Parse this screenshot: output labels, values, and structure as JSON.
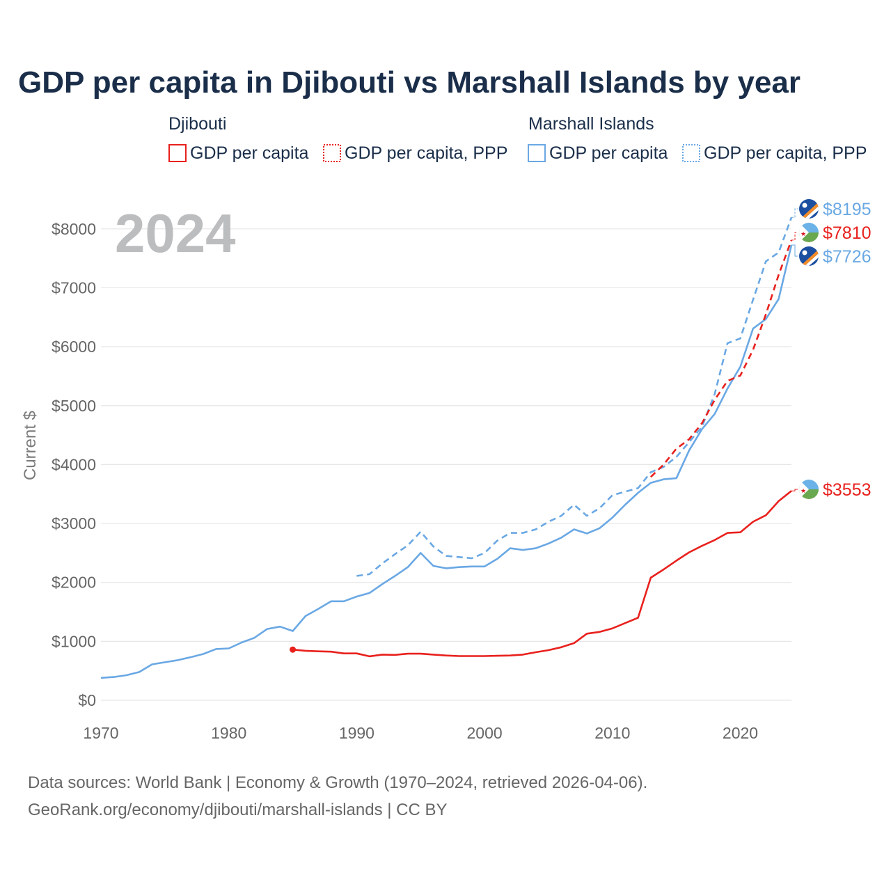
{
  "colors": {
    "djibouti": "#e8211d",
    "marshall": "#6aa8e4",
    "grid": "#e6e6e6",
    "title": "#1a2e4a",
    "tick": "#666666"
  },
  "chart_data": {
    "type": "line",
    "title": "GDP per capita in Djibouti vs Marshall Islands by year",
    "year_watermark": "2024",
    "ylabel": "Current $",
    "xlabel": "",
    "xlim": [
      1970,
      2024
    ],
    "ylim": [
      0,
      8200
    ],
    "y_ticks": [
      0,
      1000,
      2000,
      3000,
      4000,
      5000,
      6000,
      7000,
      8000
    ],
    "y_tick_labels": [
      "$0",
      "$1000",
      "$2000",
      "$3000",
      "$4000",
      "$5000",
      "$6000",
      "$7000",
      "$8000"
    ],
    "x_ticks": [
      1970,
      1980,
      1990,
      2000,
      2010,
      2020
    ],
    "x_tick_labels": [
      "1970",
      "1980",
      "1990",
      "2000",
      "2010",
      "2020"
    ],
    "legend": {
      "groups": [
        {
          "name": "Djibouti",
          "items": [
            "GDP per capita",
            "GDP per capita, PPP"
          ]
        },
        {
          "name": "Marshall Islands",
          "items": [
            "GDP per capita",
            "GDP per capita, PPP"
          ]
        }
      ]
    },
    "series": [
      {
        "name": "Marshall Islands GDP per capita, PPP",
        "country": "marshall",
        "style": "dashed",
        "end_label": "$8195",
        "x": [
          1990,
          1991,
          1992,
          1993,
          1994,
          1995,
          1996,
          1997,
          1998,
          1999,
          2000,
          2001,
          2002,
          2003,
          2004,
          2005,
          2006,
          2007,
          2008,
          2009,
          2010,
          2011,
          2012,
          2013,
          2014,
          2015,
          2016,
          2017,
          2018,
          2019,
          2020,
          2021,
          2022,
          2023,
          2024
        ],
        "values": [
          2110,
          2140,
          2320,
          2480,
          2630,
          2860,
          2610,
          2450,
          2430,
          2410,
          2500,
          2710,
          2840,
          2840,
          2900,
          3030,
          3130,
          3320,
          3130,
          3260,
          3480,
          3540,
          3600,
          3870,
          3960,
          4130,
          4380,
          4640,
          5200,
          6060,
          6140,
          6800,
          7450,
          7600,
          8195
        ]
      },
      {
        "name": "Marshall Islands GDP per capita",
        "country": "marshall",
        "style": "solid",
        "end_label": "$7726",
        "x": [
          1970,
          1971,
          1972,
          1973,
          1974,
          1975,
          1976,
          1977,
          1978,
          1979,
          1980,
          1981,
          1982,
          1983,
          1984,
          1985,
          1986,
          1987,
          1988,
          1989,
          1990,
          1991,
          1992,
          1993,
          1994,
          1995,
          1996,
          1997,
          1998,
          1999,
          2000,
          2001,
          2002,
          2003,
          2004,
          2005,
          2006,
          2007,
          2008,
          2009,
          2010,
          2011,
          2012,
          2013,
          2014,
          2015,
          2016,
          2017,
          2018,
          2019,
          2020,
          2021,
          2022,
          2023,
          2024
        ],
        "values": [
          380,
          395,
          425,
          480,
          610,
          645,
          680,
          730,
          785,
          870,
          880,
          980,
          1060,
          1210,
          1250,
          1175,
          1430,
          1550,
          1680,
          1680,
          1760,
          1820,
          1970,
          2110,
          2260,
          2500,
          2280,
          2240,
          2260,
          2270,
          2270,
          2400,
          2580,
          2550,
          2580,
          2660,
          2760,
          2900,
          2830,
          2920,
          3100,
          3320,
          3520,
          3690,
          3750,
          3770,
          4240,
          4600,
          4860,
          5290,
          5660,
          6310,
          6470,
          6810,
          7726
        ]
      },
      {
        "name": "Djibouti GDP per capita, PPP",
        "country": "djibouti",
        "style": "dashed",
        "end_label": "$7810",
        "x": [
          2013,
          2014,
          2015,
          2016,
          2017,
          2018,
          2019,
          2020,
          2021,
          2022,
          2023,
          2024
        ],
        "values": [
          3790,
          4000,
          4270,
          4430,
          4700,
          5100,
          5420,
          5510,
          5950,
          6550,
          7220,
          7810
        ]
      },
      {
        "name": "Djibouti GDP per capita",
        "country": "djibouti",
        "style": "solid",
        "end_label": "$3553",
        "x": [
          1985,
          1986,
          1987,
          1988,
          1989,
          1990,
          1991,
          1992,
          1993,
          1994,
          1995,
          1996,
          1997,
          1998,
          1999,
          2000,
          2001,
          2002,
          2003,
          2004,
          2005,
          2006,
          2007,
          2008,
          2009,
          2010,
          2011,
          2012,
          2013,
          2014,
          2015,
          2016,
          2017,
          2018,
          2019,
          2020,
          2021,
          2022,
          2023,
          2024
        ],
        "values": [
          860,
          840,
          830,
          825,
          795,
          795,
          745,
          775,
          770,
          790,
          790,
          775,
          760,
          750,
          750,
          750,
          755,
          760,
          775,
          815,
          850,
          900,
          970,
          1130,
          1160,
          1220,
          1310,
          1400,
          2080,
          2220,
          2370,
          2510,
          2620,
          2720,
          2840,
          2850,
          3030,
          3140,
          3380,
          3553
        ]
      }
    ]
  },
  "footer": {
    "line1": "Data sources: World Bank | Economy & Growth (1970–2024, retrieved 2026-04-06).",
    "line2": "GeoRank.org/economy/djibouti/marshall-islands | CC BY"
  }
}
